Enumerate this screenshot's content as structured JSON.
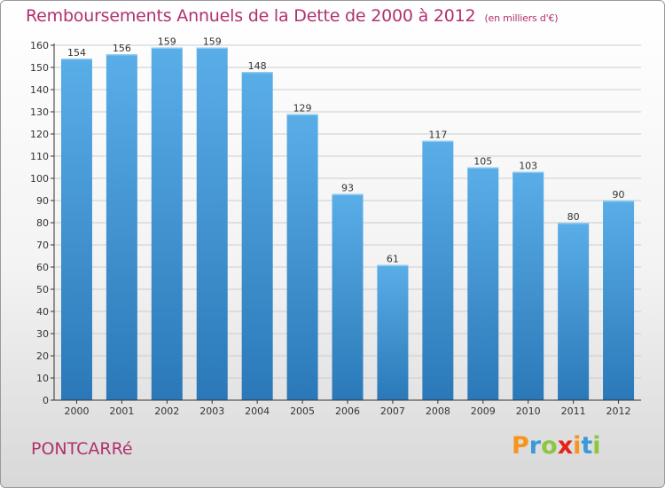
{
  "title": "Remboursements Annuels de la Dette de 2000 à 2012",
  "subtitle": "(en milliers d'€)",
  "town": "PONTCARRé",
  "logo": {
    "text": "Proxiti",
    "colors": [
      "#f7941d",
      "#3a9ad9",
      "#8dc63f",
      "#e2231a",
      "#f7941d",
      "#3a9ad9",
      "#8dc63f"
    ]
  },
  "colors": {
    "title": "#b03070",
    "bar_light": "#5aaee8",
    "bar_dark": "#2a78b8",
    "grid": "#cccccc",
    "axis": "#333333"
  },
  "chart_data": {
    "type": "bar",
    "categories": [
      "2000",
      "2001",
      "2002",
      "2003",
      "2004",
      "2005",
      "2006",
      "2007",
      "2008",
      "2009",
      "2010",
      "2011",
      "2012"
    ],
    "values": [
      154,
      156,
      159,
      159,
      148,
      129,
      93,
      61,
      117,
      105,
      103,
      80,
      90
    ],
    "ylim": [
      0,
      160
    ],
    "yticks": [
      0,
      10,
      20,
      30,
      40,
      50,
      60,
      70,
      80,
      90,
      100,
      110,
      120,
      130,
      140,
      150,
      160
    ],
    "grid": true,
    "data_labels": true
  }
}
